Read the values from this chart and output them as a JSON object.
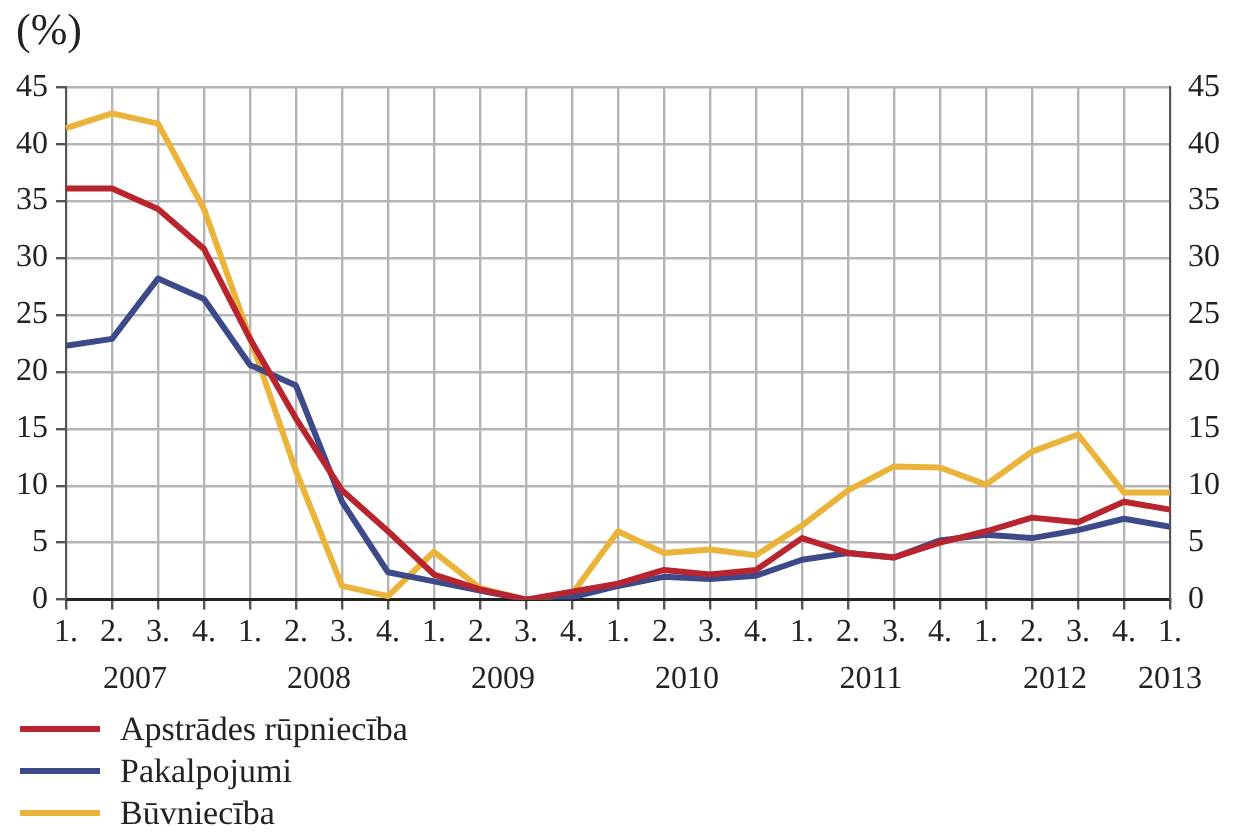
{
  "chart_data": {
    "type": "line",
    "ylabel": "(%)",
    "categories": [
      "1.",
      "2.",
      "3.",
      "4.",
      "1.",
      "2.",
      "3.",
      "4.",
      "1.",
      "2.",
      "3.",
      "4.",
      "1.",
      "2.",
      "3.",
      "4.",
      "1.",
      "2.",
      "3.",
      "4.",
      "1.",
      "2.",
      "3.",
      "4.",
      "1."
    ],
    "annotations": [
      "2007",
      "2008",
      "2009",
      "2010",
      "2011",
      "2012",
      "2013"
    ],
    "series": [
      {
        "name": "Apstrādes rūpniecība",
        "color": "#b8252e",
        "values": [
          36.1,
          36.1,
          34.3,
          30.8,
          22.9,
          15.9,
          9.6,
          6.0,
          2.2,
          0.9,
          0,
          0.7,
          1.4,
          2.6,
          2.2,
          2.6,
          5.4,
          4.1,
          3.7,
          5.0,
          6.0,
          7.2,
          6.8,
          8.6,
          7.9
        ]
      },
      {
        "name": "Pakalpojumi",
        "color": "#3d4a8a",
        "values": [
          22.3,
          22.9,
          28.2,
          26.4,
          20.6,
          18.8,
          8.6,
          2.4,
          1.6,
          0.8,
          0,
          0.2,
          1.2,
          2.0,
          1.8,
          2.1,
          3.5,
          4.1,
          3.7,
          5.2,
          5.7,
          5.4,
          6.1,
          7.1,
          6.4
        ]
      },
      {
        "name": "Būvniecība",
        "color": "#eab43a",
        "values": [
          41.4,
          42.7,
          41.8,
          34.3,
          23.0,
          11.3,
          1.2,
          0.3,
          4.2,
          1.0,
          0,
          0.5,
          6.0,
          4.1,
          4.4,
          3.9,
          6.5,
          9.6,
          11.7,
          11.6,
          10.1,
          13.0,
          14.5,
          9.4,
          9.4
        ]
      }
    ],
    "ylim": [
      0,
      45
    ],
    "yticks": [
      0,
      5,
      10,
      15,
      20,
      25,
      30,
      35,
      40,
      45
    ],
    "y2lim": [
      0,
      45
    ],
    "y2ticks": [
      0,
      5,
      10,
      15,
      20,
      25,
      30,
      35,
      40,
      45
    ],
    "grid": true,
    "legend": "bottom",
    "marker": "none",
    "line_style": "solid"
  }
}
